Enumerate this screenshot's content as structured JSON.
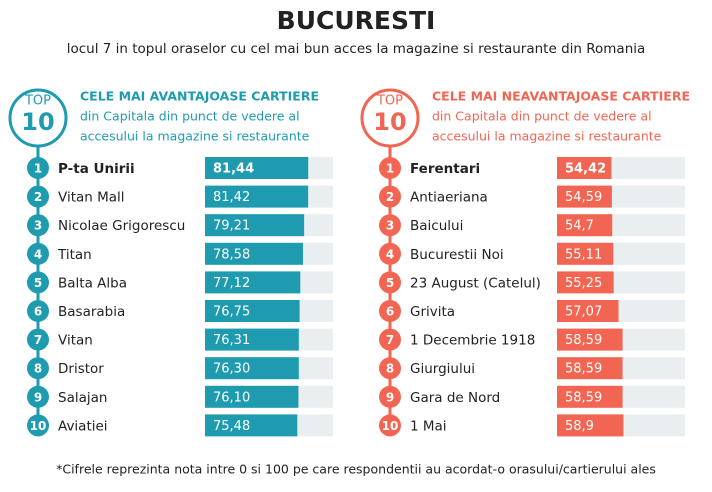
{
  "title": "BUCURESTI",
  "subtitle": "locul 7 in topul oraselor cu cel mai bun acces la magazine si restaurante din Romania",
  "footnote": "*Cifrele reprezinta nota intre 0 si 100 pe care respondentii au acordat-o orasului/cartierului ales",
  "chart_data": [
    {
      "type": "bar",
      "badge_label": "TOP",
      "badge_number": 10,
      "title": "CELE MAI AVANTAJOASE CARTIERE",
      "subtitle_lines": [
        "din Capitala din punct de vedere al",
        "accesului la magazine si restaurante"
      ],
      "color": "#1f9bb0",
      "ranks": [
        1,
        2,
        3,
        4,
        5,
        6,
        7,
        8,
        9,
        10
      ],
      "categories": [
        "P-ta Unirii",
        "Vitan Mall",
        "Nicolae Grigorescu",
        "Titan",
        "Balta Alba",
        "Basarabia",
        "Vitan",
        "Dristor",
        "Salajan",
        "Aviatiei"
      ],
      "values": [
        81.44,
        81.42,
        79.21,
        78.58,
        77.12,
        76.75,
        76.31,
        76.3,
        76.1,
        75.48
      ],
      "value_labels": [
        "81,44",
        "81,42",
        "79,21",
        "78,58",
        "77,12",
        "76,75",
        "76,31",
        "76,30",
        "76,10",
        "75,48"
      ],
      "xlim": [
        25,
        95
      ]
    },
    {
      "type": "bar",
      "badge_label": "TOP",
      "badge_number": 10,
      "title": "CELE MAI NEAVANTAJOASE CARTIERE",
      "subtitle_lines": [
        "din Capitala din punct de vedere al",
        "accesului la magazine si restaurante"
      ],
      "color": "#f26552",
      "ranks": [
        1,
        2,
        3,
        4,
        5,
        6,
        7,
        8,
        9,
        10
      ],
      "categories": [
        "Ferentari",
        "Antiaeriana",
        "Baicului",
        "Bucurestii Noi",
        "23 August (Catelul)",
        "Grivita",
        "1 Decembrie 1918",
        "Giurgiului",
        "Gara de Nord",
        "1 Mai"
      ],
      "values": [
        54.42,
        54.59,
        54.7,
        55.11,
        55.25,
        57.07,
        58.59,
        58.59,
        58.59,
        58.9
      ],
      "value_labels": [
        "54,42",
        "54,59",
        "54,7",
        "55,11",
        "55,25",
        "57,07",
        "58,59",
        "58,59",
        "58,59",
        "58,9"
      ],
      "xlim": [
        34,
        82
      ]
    }
  ]
}
